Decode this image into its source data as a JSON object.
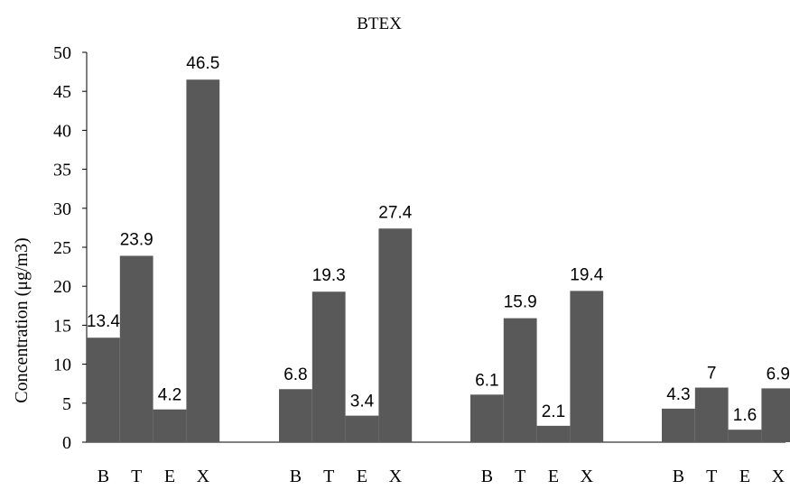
{
  "chart_data": {
    "type": "bar",
    "title": "BTEX",
    "ylabel": "Concentration  (μg/m3)",
    "xlabel": "",
    "ylim": [
      0,
      50
    ],
    "yticks": [
      0,
      5,
      10,
      15,
      20,
      25,
      30,
      35,
      40,
      45,
      50
    ],
    "grid": false,
    "legend": "none",
    "categories": [
      "B",
      "T",
      "E",
      "X"
    ],
    "groups": [
      {
        "values": [
          13.4,
          23.9,
          4.2,
          46.5
        ]
      },
      {
        "values": [
          6.8,
          19.3,
          3.4,
          27.4
        ]
      },
      {
        "values": [
          6.1,
          15.9,
          2.1,
          19.4
        ]
      },
      {
        "values": [
          4.3,
          7,
          1.6,
          6.9
        ]
      }
    ],
    "bar_color": "#595959",
    "label_color": "#000000"
  }
}
